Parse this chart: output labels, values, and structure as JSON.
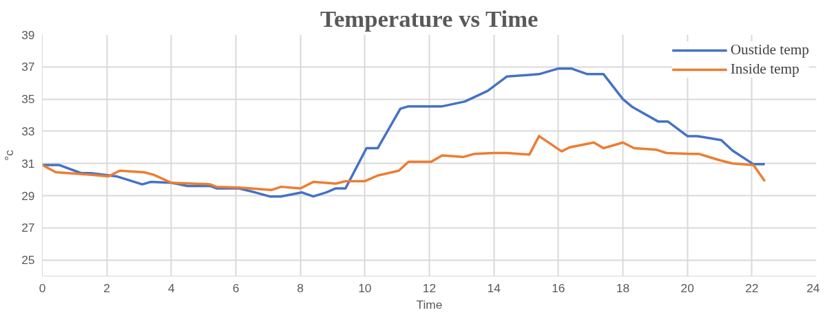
{
  "chart_data": {
    "type": "line",
    "title": "Temperature vs Time",
    "xlabel": "Time",
    "ylabel": "°c",
    "xlim": [
      0,
      24
    ],
    "xticks": [
      0,
      2,
      4,
      6,
      8,
      10,
      12,
      14,
      16,
      18,
      20,
      22,
      24
    ],
    "ylim": [
      24,
      39
    ],
    "yticks": [
      25,
      27,
      29,
      31,
      33,
      35,
      37,
      39
    ],
    "grid": true,
    "legend": "top right",
    "marker": "none",
    "line_style": "solid",
    "series": [
      {
        "name": "Oustide temp",
        "color": "#4472c4",
        "x": [
          0,
          0.53,
          1.2,
          1.5,
          2.3,
          3.1,
          3.35,
          4.0,
          4.5,
          5.2,
          5.4,
          6.1,
          6.6,
          7.05,
          7.4,
          8.05,
          8.4,
          8.8,
          9.1,
          9.4,
          10.05,
          10.4,
          11.1,
          11.35,
          12.4,
          13.1,
          13.8,
          14.4,
          15.4,
          16.0,
          16.4,
          16.9,
          17.4,
          18.0,
          18.3,
          19.1,
          19.4,
          20.0,
          20.3,
          21.05,
          21.4,
          22.05,
          22.4
        ],
        "values": [
          30.9,
          30.9,
          30.4,
          30.4,
          30.2,
          29.7,
          29.85,
          29.8,
          29.6,
          29.6,
          29.45,
          29.45,
          29.2,
          28.95,
          28.95,
          29.2,
          28.95,
          29.2,
          29.45,
          29.45,
          31.95,
          31.95,
          34.4,
          34.55,
          34.55,
          34.85,
          35.5,
          36.4,
          36.55,
          36.9,
          36.9,
          36.55,
          36.55,
          35.0,
          34.5,
          33.6,
          33.6,
          32.7,
          32.7,
          32.45,
          31.8,
          30.95,
          30.95
        ]
      },
      {
        "name": "Inside temp",
        "color": "#ed7d31",
        "x": [
          0,
          0.42,
          1.47,
          2.05,
          2.4,
          3.15,
          3.45,
          4.0,
          5.2,
          5.4,
          6.1,
          7.1,
          7.4,
          8.0,
          8.4,
          9.1,
          9.4,
          10.0,
          10.4,
          11.05,
          11.35,
          12.05,
          12.4,
          13.05,
          13.4,
          14.0,
          14.4,
          15.1,
          15.4,
          16.1,
          16.35,
          17.1,
          17.4,
          18.0,
          18.35,
          19.05,
          19.35,
          20.05,
          20.35,
          21.0,
          21.4,
          22.05,
          22.4
        ],
        "values": [
          30.9,
          30.45,
          30.3,
          30.2,
          30.55,
          30.45,
          30.3,
          29.8,
          29.7,
          29.55,
          29.5,
          29.35,
          29.55,
          29.45,
          29.85,
          29.75,
          29.9,
          29.9,
          30.25,
          30.55,
          31.1,
          31.1,
          31.5,
          31.4,
          31.6,
          31.65,
          31.65,
          31.55,
          32.7,
          31.75,
          32.0,
          32.3,
          31.95,
          32.3,
          31.95,
          31.85,
          31.65,
          31.6,
          31.6,
          31.2,
          31.0,
          30.9,
          29.9
        ]
      }
    ]
  }
}
